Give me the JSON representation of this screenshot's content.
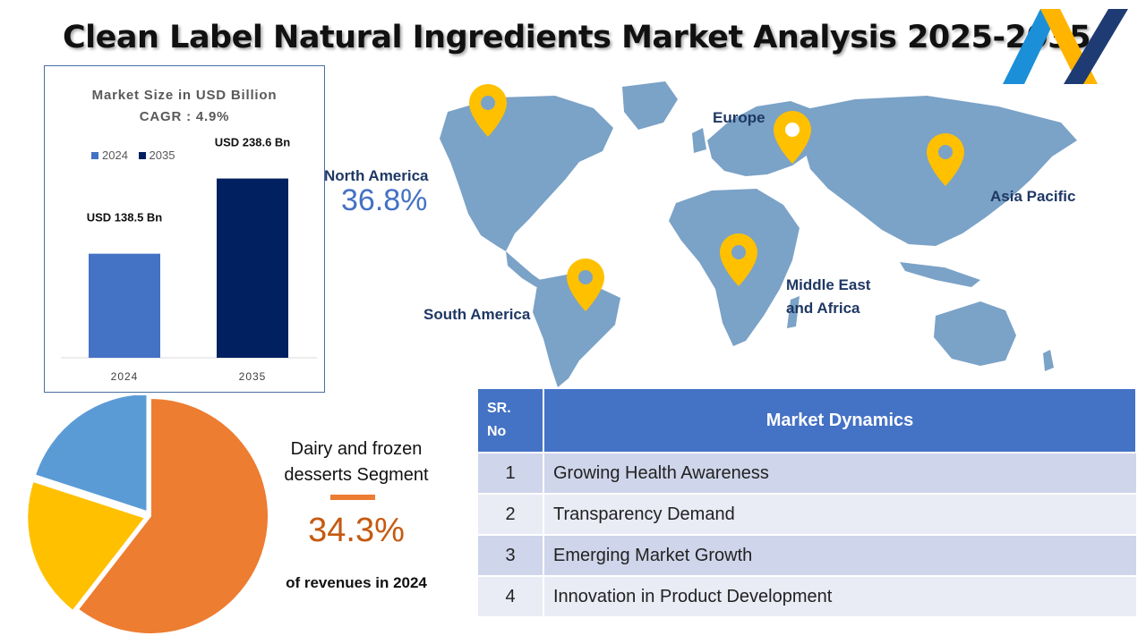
{
  "title": "Clean Label Natural Ingredients Market Analysis 2025-2035",
  "colors": {
    "bar_2024": "#4472c4",
    "bar_2035": "#002060",
    "map": "#7ba2c7",
    "pin": "#ffc000",
    "table_header": "#4472c4",
    "pie_orange": "#ed7d31",
    "pie_yellow": "#ffc000",
    "pie_blue": "#5b9bd5"
  },
  "bar_chart": {
    "heading_line1": "Market Size in USD Billion",
    "heading_line2": "CAGR : 4.9%",
    "legend": [
      "2024",
      "2035"
    ]
  },
  "chart_data": [
    {
      "type": "bar",
      "title": "Market Size in USD Billion",
      "subtitle": "CAGR : 4.9%",
      "categories": [
        "2024",
        "2035"
      ],
      "values": [
        138.5,
        238.6
      ],
      "data_labels": [
        "USD 138.5 Bn",
        "USD 238.6 Bn"
      ],
      "legend": [
        "2024",
        "2035"
      ],
      "legend_position": "top-left",
      "grid": false
    },
    {
      "type": "pie",
      "slices": [
        {
          "value": 60.5,
          "color": "#ed7d31"
        },
        {
          "value": 19.5,
          "color": "#ffc000"
        },
        {
          "value": 20.0,
          "color": "#5b9bd5"
        }
      ]
    }
  ],
  "map": {
    "regions": {
      "north_america": "North America",
      "europe": "Europe",
      "asia_pacific": "Asia Pacific",
      "middle_east_africa_line1": "Middle East",
      "middle_east_africa_line2": "and Africa",
      "south_america": "South America"
    },
    "north_america_share": "36.8%",
    "pin_icon": "location-pin-icon"
  },
  "segment": {
    "text_line1": "Dairy and frozen",
    "text_line2": "desserts Segment",
    "share": "34.3%",
    "note": "of revenues in 2024"
  },
  "table": {
    "header_sr_line1": "SR.",
    "header_sr_line2": "No",
    "header_dynamics": "Market Dynamics",
    "rows": [
      {
        "no": "1",
        "text": "Growing Health Awareness"
      },
      {
        "no": "2",
        "text": "Transparency Demand"
      },
      {
        "no": "3",
        "text": "Emerging Market Growth"
      },
      {
        "no": "4",
        "text": "Innovation in Product Development"
      }
    ]
  }
}
